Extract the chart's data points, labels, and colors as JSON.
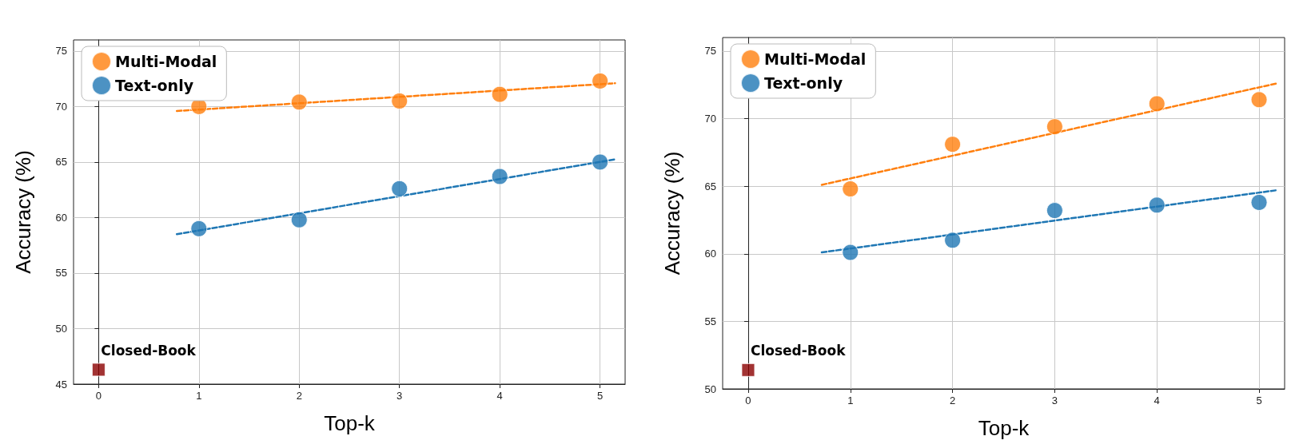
{
  "chart_data": [
    {
      "type": "scatter",
      "xlabel": "Top-k",
      "ylabel": "Accuracy (%)",
      "xlim": [
        -0.25,
        5.25
      ],
      "ylim": [
        45,
        76
      ],
      "xticks": [
        0,
        1,
        2,
        3,
        4,
        5
      ],
      "yticks": [
        45,
        50,
        55,
        60,
        65,
        70,
        75
      ],
      "grid": true,
      "legend": "top left",
      "marker": "circle",
      "series": [
        {
          "name": "Multi-Modal",
          "color": "#ff7f0e",
          "x": [
            1,
            2,
            3,
            4,
            5
          ],
          "values": [
            70.0,
            70.4,
            70.5,
            71.1,
            72.3
          ]
        },
        {
          "name": "Text-only",
          "color": "#1f77b4",
          "x": [
            1,
            2,
            3,
            4,
            5
          ],
          "values": [
            59.0,
            59.8,
            62.6,
            63.7,
            65.0
          ]
        },
        {
          "type": "line",
          "color": "#ff7f0e",
          "line_style": "dashed",
          "marker": "none",
          "x": [
            0.78,
            5.15
          ],
          "values": [
            69.6,
            72.1
          ]
        },
        {
          "type": "line",
          "color": "#1f77b4",
          "line_style": "dashed",
          "marker": "none",
          "x": [
            0.78,
            5.15
          ],
          "values": [
            58.5,
            65.25
          ]
        },
        {
          "color": "#8b0000",
          "marker": "square",
          "x": [
            0
          ],
          "values": [
            46.3
          ]
        }
      ],
      "annotations": [
        {
          "text": "Closed-Book",
          "x": 0,
          "y": 46.3
        }
      ]
    },
    {
      "type": "scatter",
      "xlabel": "Top-k",
      "ylabel": "Accuracy (%)",
      "xlim": [
        -0.25,
        5.25
      ],
      "ylim": [
        50,
        76
      ],
      "xticks": [
        0,
        1,
        2,
        3,
        4,
        5
      ],
      "yticks": [
        50,
        55,
        60,
        65,
        70,
        75
      ],
      "grid": true,
      "legend": "top left",
      "marker": "circle",
      "series": [
        {
          "name": "Multi-Modal",
          "color": "#ff7f0e",
          "x": [
            1,
            2,
            3,
            4,
            5
          ],
          "values": [
            64.8,
            68.1,
            69.4,
            71.1,
            71.4
          ]
        },
        {
          "name": "Text-only",
          "color": "#1f77b4",
          "x": [
            1,
            2,
            3,
            4,
            5
          ],
          "values": [
            60.1,
            61.0,
            63.2,
            63.6,
            63.8
          ]
        },
        {
          "type": "line",
          "color": "#ff7f0e",
          "line_style": "dashed",
          "marker": "none",
          "x": [
            0.72,
            5.17
          ],
          "values": [
            65.1,
            72.6
          ]
        },
        {
          "type": "line",
          "color": "#1f77b4",
          "line_style": "dashed",
          "marker": "none",
          "x": [
            0.72,
            5.17
          ],
          "values": [
            60.1,
            64.7
          ]
        },
        {
          "color": "#8b0000",
          "marker": "square",
          "x": [
            0
          ],
          "values": [
            51.4
          ]
        }
      ],
      "annotations": [
        {
          "text": "Closed-Book",
          "x": 0,
          "y": 51.4
        }
      ]
    }
  ]
}
